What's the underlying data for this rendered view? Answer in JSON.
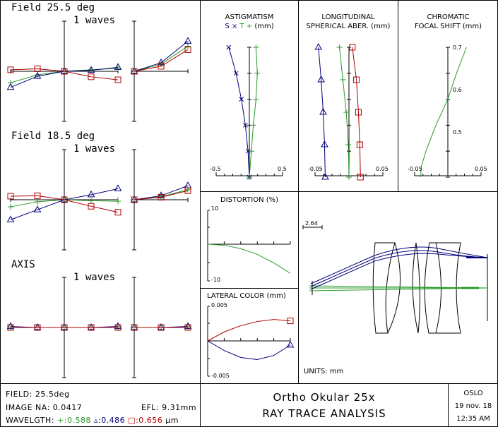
{
  "colors": {
    "primary": "#008800",
    "blue": "#00007a",
    "red": "#b00000",
    "green": "#2a9a2a"
  },
  "ray_fans": {
    "scale_label": "1 waves",
    "panels": [
      {
        "title": "Field 25.5 deg",
        "tangential": {
          "x": [
            -1,
            -0.5,
            0,
            0.5,
            1
          ],
          "green": [
            -0.23,
            -0.07,
            0,
            0.03,
            0.06
          ],
          "blue": [
            -0.32,
            -0.1,
            0,
            0.02,
            0.08
          ],
          "red": [
            0.03,
            0.05,
            0,
            -0.11,
            -0.17
          ]
        },
        "sagittal": {
          "x": [
            0,
            0.5,
            1
          ],
          "green": [
            0,
            0.14,
            0.5
          ],
          "blue": [
            0,
            0.17,
            0.6
          ],
          "red": [
            0,
            0.1,
            0.43
          ]
        }
      },
      {
        "title": "Field 18.5 deg",
        "tangential": {
          "x": [
            -1,
            -0.5,
            0,
            0.5,
            1
          ],
          "green": [
            -0.14,
            -0.04,
            0,
            -0.02,
            -0.03
          ],
          "blue": [
            -0.4,
            -0.2,
            0,
            0.1,
            0.22
          ],
          "red": [
            0.07,
            0.08,
            0,
            -0.13,
            -0.25
          ]
        },
        "sagittal": {
          "x": [
            0,
            0.5,
            1
          ],
          "green": [
            0,
            0.06,
            0.2
          ],
          "blue": [
            0,
            0.08,
            0.28
          ],
          "red": [
            0,
            0.05,
            0.18
          ]
        }
      },
      {
        "title": "AXIS",
        "tangential": {
          "x": [
            -1,
            -0.5,
            0,
            0.5,
            1
          ],
          "green": [
            0,
            0,
            0,
            0,
            0
          ],
          "blue": [
            0.02,
            0,
            0,
            0,
            0.02
          ],
          "red": [
            0,
            0,
            0,
            0,
            0
          ]
        },
        "sagittal": {
          "x": [
            0,
            0.5,
            1
          ],
          "green": [
            0,
            0,
            0
          ],
          "blue": [
            0,
            0,
            0.02
          ],
          "red": [
            0,
            0,
            0
          ]
        }
      }
    ]
  },
  "chart_data": [
    {
      "type": "line",
      "title": "ASTIGMATISM",
      "legend": [
        "S ×",
        "T +"
      ],
      "units": "(mm)",
      "xlim": [
        -0.5,
        0.5
      ],
      "tick_labels": [
        "-0.5",
        "0.5"
      ],
      "ylim": [
        0,
        1
      ],
      "series": [
        {
          "name": "S",
          "color": "blue",
          "marker": "x",
          "y": [
            0,
            0.2,
            0.4,
            0.6,
            0.8,
            1.0
          ],
          "x": [
            0,
            -0.02,
            -0.06,
            -0.12,
            -0.2,
            -0.31
          ]
        },
        {
          "name": "T",
          "color": "green",
          "marker": "+",
          "y": [
            0,
            0.2,
            0.4,
            0.6,
            0.8,
            1.0
          ],
          "x": [
            0,
            0.03,
            0.06,
            0.1,
            0.12,
            0.1
          ]
        }
      ]
    },
    {
      "type": "line",
      "title": "LONGITUDINAL",
      "subtitle": "SPHERICAL ABER. (mm)",
      "xlim": [
        -0.05,
        0.05
      ],
      "tick_labels": [
        "-0.05",
        "0.05"
      ],
      "ylim": [
        0,
        1
      ],
      "series": [
        {
          "name": "0.486",
          "color": "blue",
          "marker": "triangle",
          "y": [
            0,
            0.25,
            0.5,
            0.75,
            1.0
          ],
          "x": [
            -0.035,
            -0.036,
            -0.038,
            -0.041,
            -0.045
          ]
        },
        {
          "name": "0.588",
          "color": "green",
          "marker": "+",
          "y": [
            0,
            0.25,
            0.5,
            0.75,
            1.0
          ],
          "x": [
            0,
            -0.001,
            -0.004,
            -0.009,
            -0.014
          ]
        },
        {
          "name": "0.656",
          "color": "red",
          "marker": "square",
          "y": [
            0,
            0.25,
            0.5,
            0.75,
            1.0
          ],
          "x": [
            0.017,
            0.016,
            0.014,
            0.011,
            0.005
          ]
        }
      ]
    },
    {
      "type": "line",
      "title": "CHROMATIC",
      "subtitle": "FOCAL SHIFT (mm)",
      "xlim": [
        -0.05,
        0.05
      ],
      "tick_labels": [
        "-0.05",
        "0.05"
      ],
      "y_tick_labels": [
        "0.5",
        "0.6",
        "0.7"
      ],
      "ylim": [
        0.45,
        0.7
      ],
      "series": [
        {
          "name": "focal shift",
          "color": "green",
          "y": [
            0.45,
            0.47,
            0.5,
            0.55,
            0.6,
            0.65,
            0.7
          ],
          "x": [
            -0.041,
            -0.04,
            -0.033,
            -0.018,
            0,
            0.013,
            0.028
          ]
        }
      ]
    },
    {
      "type": "line",
      "title": "DISTORTION (%)",
      "ylim": [
        -10,
        10
      ],
      "y_tick_labels": [
        "10",
        "-10"
      ],
      "xlim": [
        0,
        1
      ],
      "series": [
        {
          "name": "distortion",
          "color": "green",
          "x": [
            0,
            0.2,
            0.4,
            0.6,
            0.8,
            1.0
          ],
          "y": [
            0,
            -0.3,
            -1.3,
            -3.0,
            -5.5,
            -8.6
          ]
        }
      ]
    },
    {
      "type": "line",
      "title": "LATERAL COLOR (mm)",
      "ylim": [
        -0.005,
        0.005
      ],
      "y_tick_labels": [
        "0.005",
        "-0.005"
      ],
      "xlim": [
        0,
        1
      ],
      "series": [
        {
          "name": "0.656",
          "color": "red",
          "marker": "square",
          "x": [
            0,
            0.2,
            0.4,
            0.6,
            0.8,
            1.0
          ],
          "y": [
            0,
            0.0013,
            0.0022,
            0.0028,
            0.0031,
            0.0029
          ]
        },
        {
          "name": "0.486",
          "color": "blue",
          "marker": "triangle",
          "x": [
            0,
            0.2,
            0.4,
            0.6,
            0.8,
            1.0
          ],
          "y": [
            0,
            -0.0014,
            -0.0024,
            -0.0027,
            -0.0021,
            -0.0006
          ]
        }
      ]
    }
  ],
  "layout": {
    "scale_label": "2.64",
    "units_label": "UNITS: mm"
  },
  "footer": {
    "field": "FIELD: 25.5deg",
    "image_na": "IMAGE NA: 0.0417",
    "efl": "EFL: 9.31mm",
    "wavelength_label": "WAVELGTH:",
    "wavelengths": [
      {
        "symbol": "+",
        "value": ":0.588",
        "color": "green"
      },
      {
        "symbol": "▵",
        "value": ":0.486",
        "color": "blue"
      },
      {
        "symbol": "□",
        "value": ":0.656",
        "color": "red"
      }
    ],
    "wavelength_unit": "µm",
    "lens_name": "Ortho Okular 25x",
    "analysis_title": "RAY TRACE ANALYSIS",
    "program": "OSLO",
    "date": "19 nov. 18",
    "time": "12:35 AM"
  }
}
